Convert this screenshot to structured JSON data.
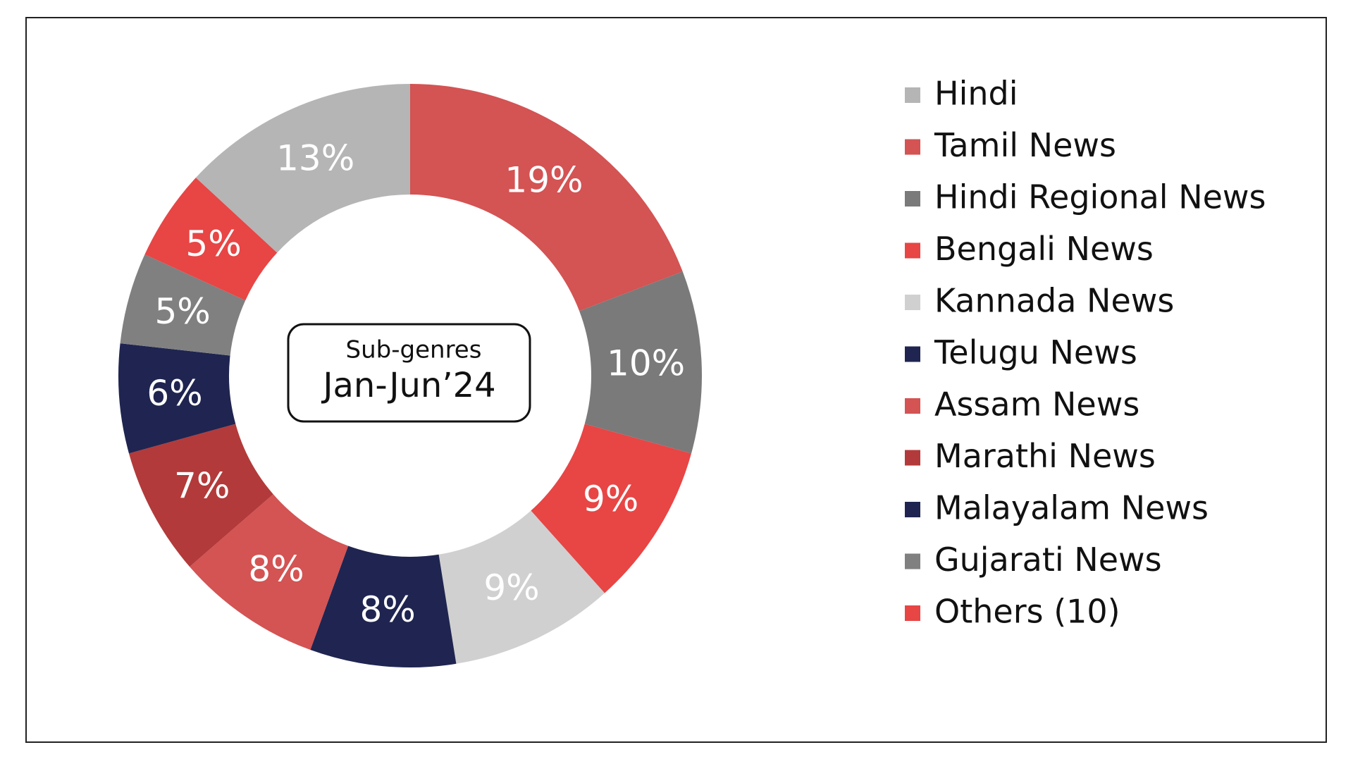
{
  "chart_data": {
    "type": "donut",
    "center_text": [
      "Sub-genres",
      "Jan-Jun’24"
    ],
    "categories": [
      "Hindi",
      "Tamil News",
      "Hindi Regional News",
      "Bengali News",
      "Kannada News",
      "Telugu News",
      "Assam News",
      "Marathi News",
      "Malayalam News",
      "Gujarati News",
      "Others (10)"
    ],
    "values": [
      13,
      19,
      10,
      9,
      9,
      8,
      8,
      7,
      6,
      5,
      5
    ],
    "value_labels": [
      "13%",
      "19%",
      "10%",
      "9%",
      "9%",
      "8%",
      "8%",
      "7%",
      "6%",
      "5%",
      "5%"
    ],
    "colors": [
      "#b5b5b5",
      "#d45353",
      "#7a7a7a",
      "#e84545",
      "#d0d0d0",
      "#1f2550",
      "#d45353",
      "#b33a3a",
      "#1f2550",
      "#808080",
      "#e84545"
    ],
    "legend": "right"
  }
}
